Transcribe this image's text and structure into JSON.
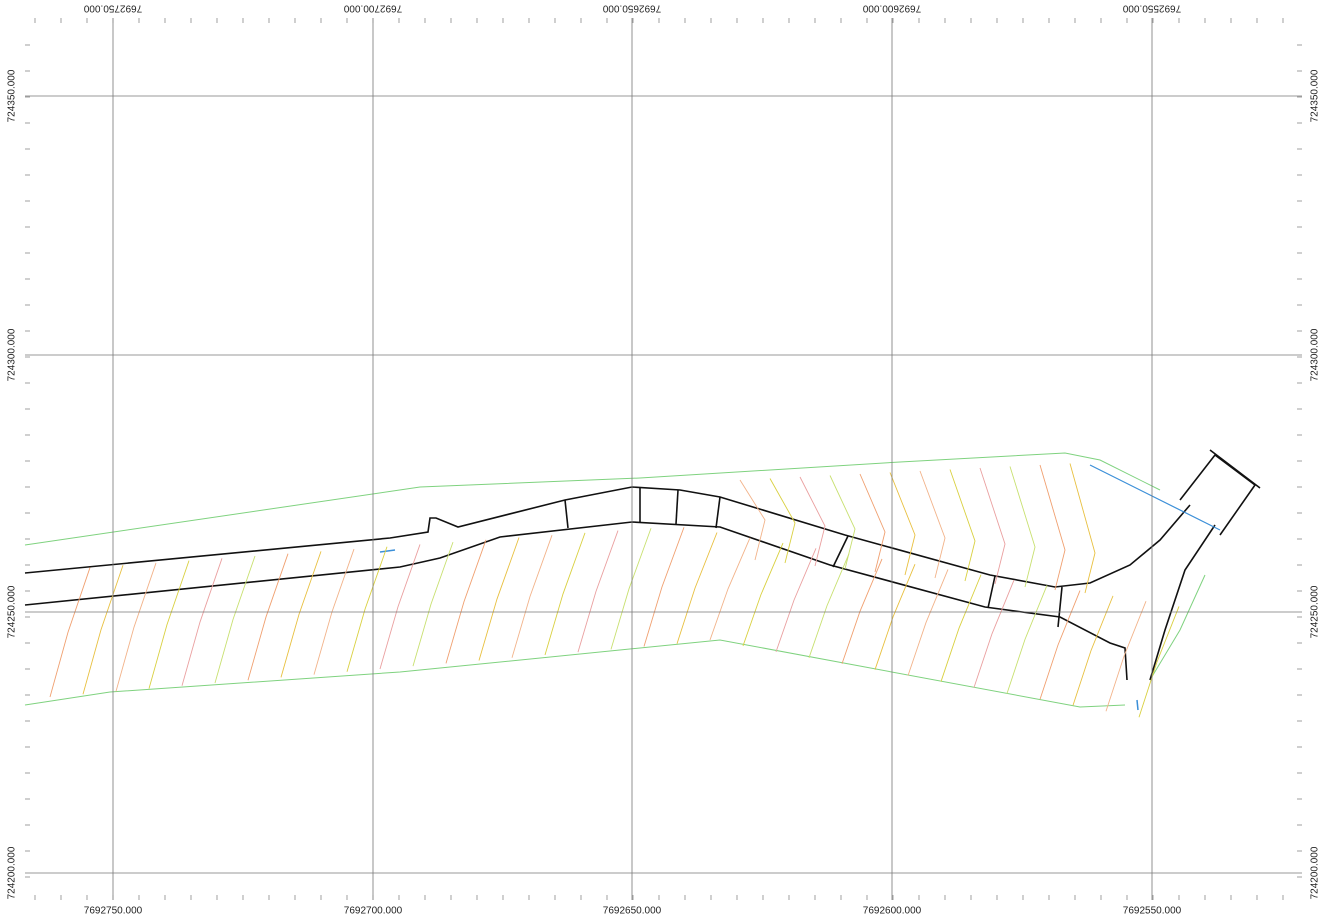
{
  "grid": {
    "eastings": [
      "7692750.000",
      "7692700.000",
      "7692650.000",
      "7692600.000",
      "7692550.000"
    ],
    "northings": [
      "724350.000",
      "724300.000",
      "724250.000",
      "724200.000"
    ]
  }
}
